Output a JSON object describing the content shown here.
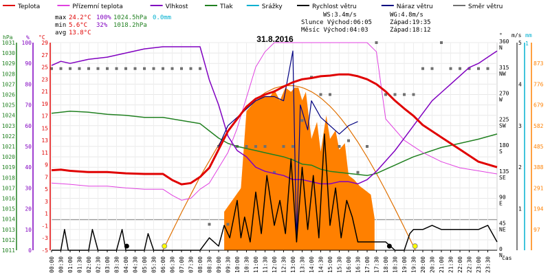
{
  "header": {
    "legend": [
      {
        "label": "Teplota",
        "color": "#e00000"
      },
      {
        "label": "Přízemní teplota",
        "color": "#e040e0"
      },
      {
        "label": "Vlhkost",
        "color": "#8000c0"
      },
      {
        "label": "Tlak",
        "color": "#208020"
      },
      {
        "label": "Srážky",
        "color": "#00b0d0"
      },
      {
        "label": "Rychlost větru",
        "color": "#000000"
      },
      {
        "label": "Náraz větru",
        "color": "#000080"
      },
      {
        "label": "Směr větru",
        "color": "#707070"
      }
    ],
    "stats": {
      "max_label": "max",
      "max_temp": "24.2°C",
      "max_hum": "100%",
      "max_press": "1024.5hPa",
      "max_rain": "0.0mm",
      "min_label": "min",
      "min_temp": " 5.6°C",
      "min_hum": "32%",
      "min_press": "1018.2hPa",
      "avg_label": "avg",
      "avg_temp": "13.8°C"
    },
    "wind": {
      "ws": "WS:3.4m/s",
      "wg": "WG:4.8m/s"
    },
    "sun": {
      "rise": "Slunce Východ:06:05",
      "set": "Západ:19:35"
    },
    "moon": {
      "rise": "Měsíc  Východ:04:03",
      "set": "Západ:18:12"
    }
  },
  "chart_data": {
    "type": "line",
    "title": "31.8.2016",
    "x_label": "čas",
    "x_ticks": [
      "00:00",
      "00:30",
      "01:00",
      "01:30",
      "02:00",
      "02:30",
      "03:00",
      "03:30",
      "04:00",
      "04:30",
      "05:00",
      "05:30",
      "06:00",
      "06:30",
      "07:00",
      "07:30",
      "08:00",
      "08:30",
      "09:00",
      "09:30",
      "10:00",
      "10:30",
      "11:00",
      "11:30",
      "12:00",
      "12:30",
      "13:00",
      "13:30",
      "14:00",
      "14:30",
      "15:00",
      "15:30",
      "16:00",
      "16:30",
      "17:00",
      "17:30",
      "18:00",
      "18:30",
      "19:00",
      "19:30",
      "20:00",
      "20:30",
      "21:00",
      "21:30",
      "22:00",
      "22:30",
      "23:00",
      "23:30"
    ],
    "axes": {
      "hpa": {
        "label": "hPa",
        "color": "#208020",
        "min": 1011,
        "max": 1031,
        "ticks": [
          "1031",
          "1030",
          "1029",
          "1028",
          "1027",
          "1026",
          "1025",
          "1024",
          "1023",
          "1022",
          "1021",
          "1020",
          "1019",
          "1018",
          "1017",
          "1016",
          "1015",
          "1014",
          "1013",
          "1012",
          "1011"
        ]
      },
      "pct": {
        "label": "%",
        "color": "#8000c0",
        "min": 0,
        "max": 100,
        "ticks": [
          "100",
          "90",
          "80",
          "70",
          "60",
          "50",
          "40",
          "30",
          "20",
          "10",
          "0"
        ]
      },
      "degc": {
        "label": "°C",
        "color": "#e00000",
        "min": -5,
        "max": 29,
        "ticks": [
          "29",
          "27",
          "25",
          "23",
          "21",
          "19",
          "17",
          "15",
          "13",
          "11",
          "9",
          "7",
          "5",
          "3",
          "1",
          "-1",
          "-3",
          "-5"
        ]
      },
      "dir": {
        "label": "°",
        "min": 0,
        "max": 360,
        "ticks": [
          {
            "v": "360",
            "c": "N"
          },
          {
            "v": "315",
            "c": "NW"
          },
          {
            "v": "270",
            "c": "W"
          },
          {
            "v": "225",
            "c": "SW"
          },
          {
            "v": "180",
            "c": "S"
          },
          {
            "v": "135",
            "c": "SE"
          },
          {
            "v": "90",
            "c": "E"
          },
          {
            "v": "45",
            "c": "NE"
          },
          {
            "v": "0",
            "c": "N"
          }
        ]
      },
      "ms": {
        "label": "m/s",
        "color": "#000000",
        "min": 0,
        "max": 5,
        "ticks": [
          "5",
          "4",
          "3",
          "2",
          "1",
          "0"
        ]
      },
      "mm": {
        "label": "mm",
        "color": "#00b0d0",
        "ticks": [
          "1",
          "0"
        ]
      },
      "wm2": {
        "color": "#ff8000",
        "min": 0,
        "max": 970,
        "ticks": [
          "873",
          "776",
          "679",
          "582",
          "485",
          "388",
          "291",
          "194",
          "97"
        ]
      }
    },
    "series": [
      {
        "name": "Teplota",
        "color": "#e00000",
        "unit": "°C",
        "x": [
          0,
          0.5,
          1,
          2,
          3,
          4,
          5,
          6,
          6.5,
          7,
          7.5,
          8,
          8.5,
          9,
          9.5,
          10,
          10.5,
          11,
          11.5,
          12,
          12.5,
          13,
          13.5,
          14,
          14.5,
          15,
          15.5,
          16,
          16.5,
          17,
          17.5,
          18,
          18.5,
          19,
          19.5,
          20,
          21,
          22,
          23,
          24
        ],
        "y": [
          8.1,
          8.2,
          8.0,
          7.8,
          7.8,
          7.6,
          7.5,
          7.5,
          6.5,
          5.8,
          6.0,
          7.0,
          8.5,
          11.5,
          14.5,
          16.5,
          18.5,
          19.8,
          20.5,
          21.0,
          21.8,
          22.5,
          23.0,
          23.2,
          23.5,
          23.6,
          23.8,
          23.8,
          23.5,
          23.0,
          22.2,
          21.0,
          19.5,
          18.2,
          17.0,
          15.5,
          13.5,
          11.5,
          9.5,
          8.6
        ]
      },
      {
        "name": "Přízemní teplota",
        "color": "#e040e0",
        "unit": "°C",
        "x": [
          0,
          1,
          2,
          3,
          4,
          5,
          6,
          6.5,
          7,
          7.5,
          8,
          8.5,
          9,
          9.5,
          10,
          10.5,
          11,
          11.5,
          12,
          12.5,
          13,
          13.5,
          14,
          14.5,
          15,
          15.5,
          16,
          16.5,
          17,
          17.5,
          18,
          19,
          20,
          21,
          22,
          23,
          24
        ],
        "y": [
          6.0,
          5.8,
          5.5,
          5.5,
          5.2,
          5.0,
          5.0,
          4.0,
          3.2,
          3.5,
          5.0,
          6.0,
          8.5,
          11.0,
          15.0,
          20.0,
          25.0,
          27.5,
          29,
          29,
          29,
          29,
          29,
          29,
          29,
          29,
          29,
          29,
          29,
          27.5,
          16.5,
          13.0,
          11.0,
          9.5,
          8.5,
          8.0,
          7.5
        ]
      },
      {
        "name": "Vlhkost",
        "color": "#8000c0",
        "unit": "%",
        "x": [
          0,
          0.5,
          1,
          2,
          3,
          4,
          5,
          6,
          6.5,
          7,
          7.5,
          8,
          8.5,
          9,
          9.5,
          10,
          10.5,
          11,
          11.5,
          12,
          12.5,
          13,
          13.5,
          14,
          14.5,
          15,
          15.5,
          16,
          16.5,
          17,
          17.5,
          18,
          18.5,
          19,
          19.5,
          20,
          20.5,
          21,
          21.5,
          22,
          22.5,
          23,
          23.5,
          24
        ],
        "y": [
          89,
          91,
          90,
          92,
          93,
          95,
          97,
          98,
          98,
          98,
          98,
          98,
          82,
          70,
          55,
          48,
          45,
          40,
          38,
          37,
          36,
          34,
          34,
          33,
          32,
          32,
          33,
          33,
          32,
          34,
          38,
          43,
          48,
          54,
          60,
          66,
          72,
          76,
          80,
          84,
          88,
          90,
          93,
          96
        ]
      },
      {
        "name": "Tlak",
        "color": "#208020",
        "unit": "hPa",
        "x": [
          0,
          1,
          2,
          3,
          4,
          5,
          6,
          7,
          8,
          8.5,
          9,
          9.5,
          10,
          10.5,
          11,
          11.5,
          12,
          12.5,
          13,
          13.5,
          14,
          14.5,
          15,
          15.5,
          16,
          16.5,
          17,
          17.5,
          18,
          18.5,
          19,
          19.5,
          20,
          20.5,
          21,
          22,
          23,
          24
        ],
        "y": [
          1024.2,
          1024.4,
          1024.3,
          1024.1,
          1024.0,
          1023.8,
          1023.8,
          1023.5,
          1023.2,
          1022.5,
          1021.8,
          1021.3,
          1021.0,
          1020.8,
          1020.6,
          1020.4,
          1020.2,
          1020.0,
          1019.7,
          1019.3,
          1019.2,
          1018.8,
          1018.6,
          1018.5,
          1018.4,
          1018.3,
          1018.2,
          1018.4,
          1018.8,
          1019.2,
          1019.6,
          1020.0,
          1020.3,
          1020.6,
          1020.9,
          1021.3,
          1021.7,
          1022.2
        ]
      },
      {
        "name": "Rychlost větru",
        "color": "#000000",
        "unit": "m/s",
        "x": [
          0,
          0.5,
          0.7,
          0.9,
          1.5,
          2,
          2.2,
          2.5,
          3.5,
          3.8,
          4,
          4.5,
          5,
          5.2,
          5.5,
          6,
          7,
          8,
          8.5,
          9,
          9.3,
          9.6,
          10,
          10.2,
          10.4,
          10.7,
          11,
          11.3,
          11.6,
          12,
          12.3,
          12.6,
          12.9,
          13.2,
          13.5,
          13.8,
          14.1,
          14.4,
          14.7,
          15,
          15.3,
          15.6,
          15.9,
          16.2,
          16.5,
          17,
          17.5,
          18,
          18.5,
          19,
          19.3,
          19.5,
          20,
          20.5,
          21,
          21.5,
          22,
          22.5,
          23,
          23.5,
          24
        ],
        "y": [
          0,
          0,
          0.5,
          0,
          0,
          0,
          0.5,
          0,
          0,
          0.5,
          0,
          0,
          0,
          0.4,
          0,
          0,
          0,
          0,
          0.3,
          0.1,
          0.6,
          0.3,
          1.2,
          0.3,
          0.8,
          0.2,
          1.4,
          0.4,
          1.8,
          0.6,
          1.2,
          0.4,
          2.2,
          0.2,
          2.0,
          0.5,
          1.8,
          0.3,
          2.8,
          0.6,
          1.5,
          0.3,
          1.2,
          0.8,
          0.2,
          0.2,
          0.2,
          0.2,
          0,
          0,
          0.4,
          0.5,
          0.5,
          0.6,
          0.5,
          0.5,
          0.5,
          0.5,
          0.5,
          0.6,
          0.2
        ]
      },
      {
        "name": "Náraz větru",
        "color": "#000080",
        "unit": "m/s",
        "x": [
          9,
          9.5,
          10,
          10.5,
          11,
          11.5,
          12,
          12.5,
          13,
          13.2,
          13.4,
          13.6,
          13.8,
          14,
          14.5,
          15,
          15.5,
          16,
          16.5
        ],
        "y": [
          2.5,
          3.0,
          3.2,
          3.4,
          3.6,
          3.7,
          3.7,
          3.6,
          4.8,
          0.2,
          3.5,
          3.2,
          2.9,
          3.6,
          3.2,
          3.0,
          2.8,
          3.0,
          3.1
        ]
      },
      {
        "name": "Směr větru",
        "color": "#707070",
        "unit": "°",
        "x": [
          0,
          0.5,
          1,
          1.5,
          2,
          2.5,
          3,
          3.5,
          4,
          4.5,
          5,
          5.5,
          6,
          6.5,
          7,
          7.5,
          8,
          8.5,
          9,
          9.5,
          10,
          10.5,
          11,
          11.5,
          12,
          12.5,
          13,
          13.5,
          14,
          14.5,
          15,
          15.5,
          16,
          16.5,
          17,
          17.5,
          18,
          18.5,
          19,
          19.5,
          20,
          20.5,
          21,
          21.5,
          22,
          22.5,
          23,
          23.5
        ],
        "y": [
          315,
          315,
          315,
          315,
          315,
          315,
          315,
          315,
          315,
          315,
          315,
          315,
          315,
          315,
          315,
          315,
          315,
          45,
          180,
          45,
          180,
          180,
          180,
          180,
          135,
          180,
          180,
          225,
          300,
          270,
          270,
          180,
          190,
          135,
          180,
          360,
          270,
          270,
          270,
          270,
          315,
          315,
          360,
          315,
          315,
          315,
          315,
          315
        ]
      },
      {
        "name": "Solar radiation",
        "color": "#ff8000",
        "unit": "W/m²",
        "x": [
          6.0,
          7,
          8,
          9,
          9.5,
          10,
          10.5,
          11,
          11.5,
          12,
          12.5,
          13,
          13.3,
          13.6,
          14,
          14.3,
          14.6,
          15,
          15.3,
          15.6,
          16,
          16.5,
          17,
          17.5,
          18,
          18.5,
          19,
          19.6
        ],
        "y": [
          0,
          80,
          250,
          420,
          540,
          580,
          640,
          660,
          700,
          720,
          700,
          770,
          420,
          610,
          470,
          580,
          330,
          600,
          450,
          500,
          340,
          290,
          250,
          200,
          150,
          80,
          30,
          0
        ]
      }
    ],
    "solar_fill": {
      "x": [
        9.3,
        10.2,
        10.5,
        11.0,
        11.4,
        11.8,
        12.0,
        12.3,
        12.6,
        12.9,
        13.1,
        13.3,
        13.5,
        13.7,
        14.0,
        14.3,
        14.5,
        14.8,
        15.0,
        15.3,
        15.5,
        15.8,
        16.0,
        16.3,
        16.6,
        16.9,
        17.2,
        17.4
      ],
      "y": [
        180,
        290,
        650,
        700,
        720,
        720,
        750,
        700,
        760,
        740,
        760,
        760,
        700,
        740,
        520,
        600,
        460,
        630,
        520,
        560,
        470,
        500,
        350,
        330,
        300,
        280,
        260,
        150
      ]
    }
  }
}
